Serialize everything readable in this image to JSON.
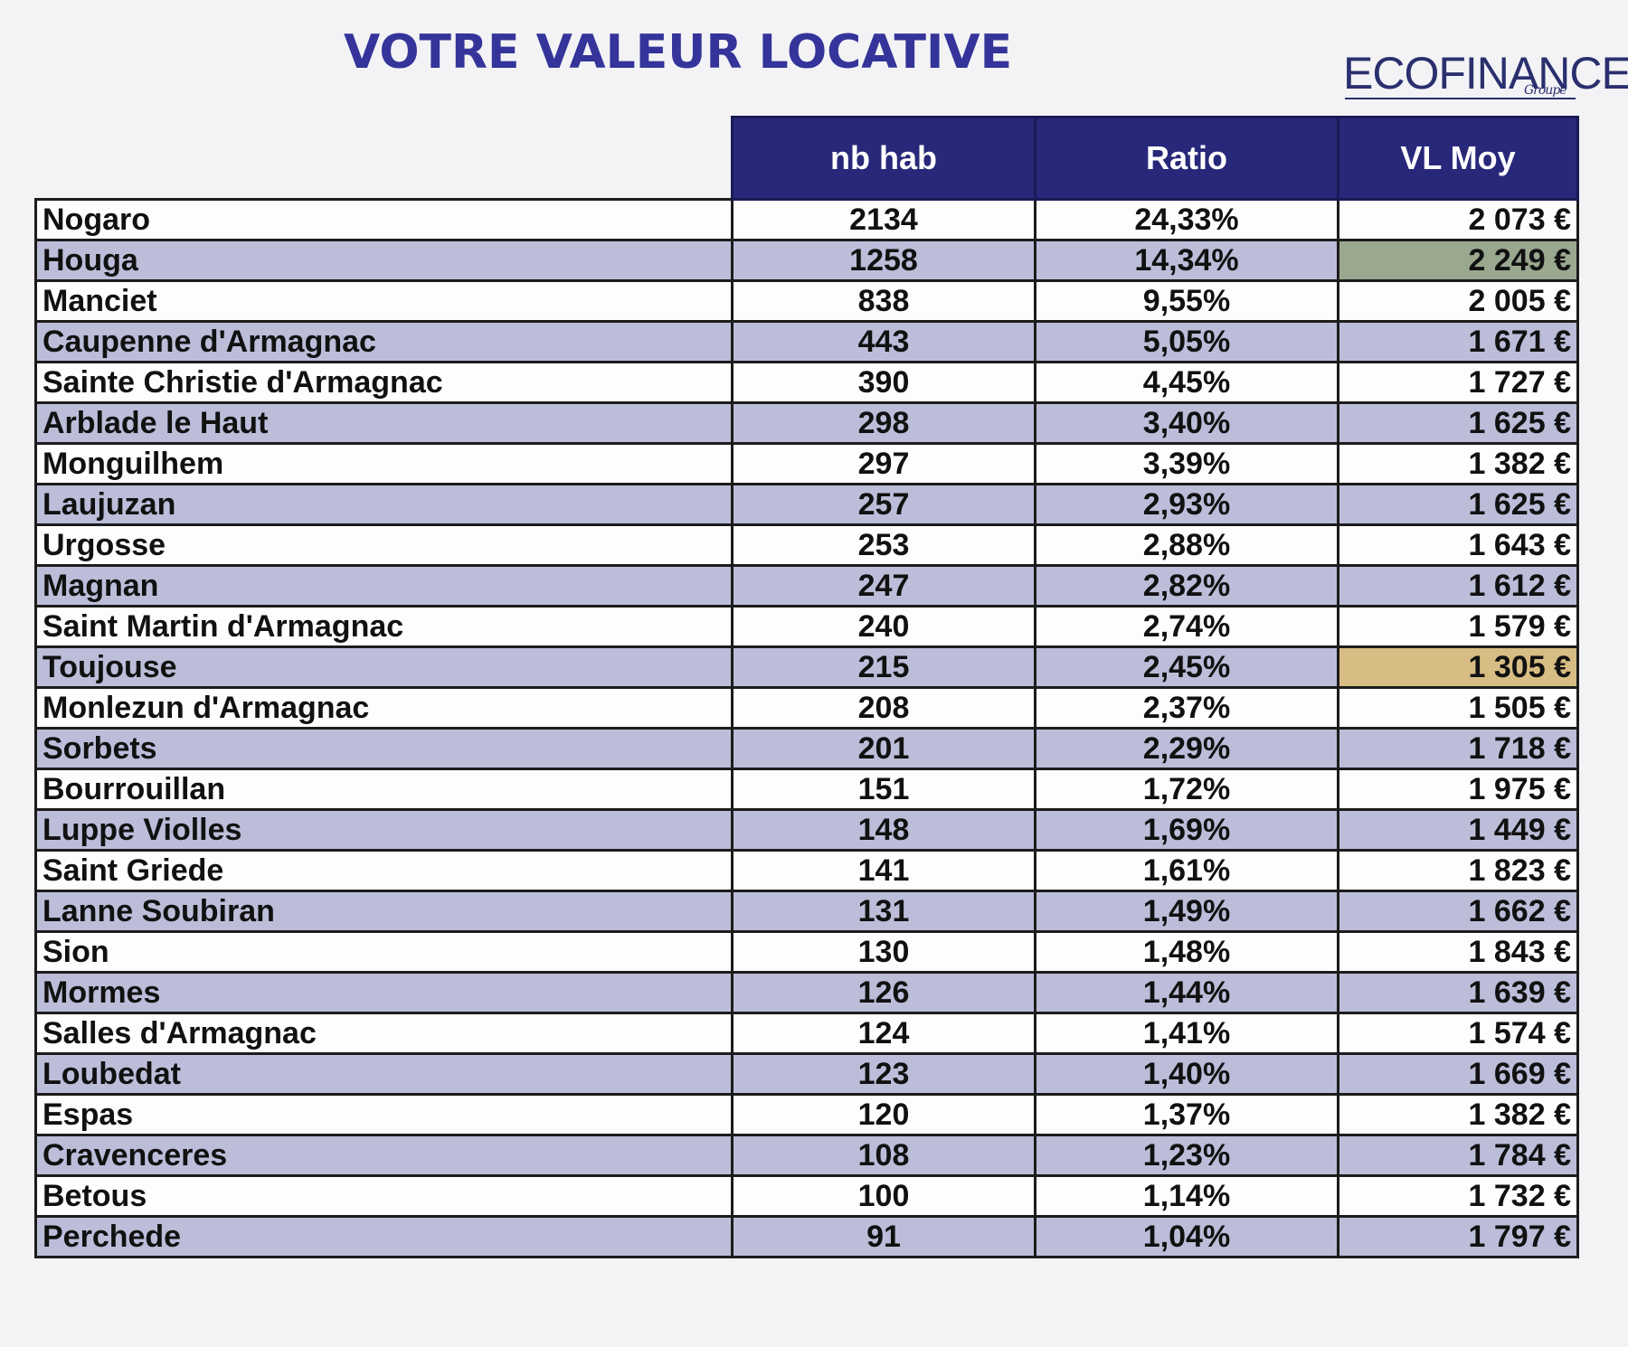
{
  "title": "VOTRE VALEUR LOCATIVE",
  "logo": {
    "text": "ECOFINANCE",
    "sub": "Groupe"
  },
  "table": {
    "headers": [
      "",
      "nb hab",
      "Ratio",
      "VL Moy"
    ],
    "rows": [
      {
        "commune": "Nogaro",
        "nb_hab": "2134",
        "ratio": "24,33%",
        "vl_moy": "2 073 €"
      },
      {
        "commune": "Houga",
        "nb_hab": "1258",
        "ratio": "14,34%",
        "vl_moy": "2 249 €",
        "highlight": "#9aa890"
      },
      {
        "commune": "Manciet",
        "nb_hab": "838",
        "ratio": "9,55%",
        "vl_moy": "2 005 €"
      },
      {
        "commune": "Caupenne d'Armagnac",
        "nb_hab": "443",
        "ratio": "5,05%",
        "vl_moy": "1 671 €"
      },
      {
        "commune": "Sainte Christie d'Armagnac",
        "nb_hab": "390",
        "ratio": "4,45%",
        "vl_moy": "1 727 €"
      },
      {
        "commune": "Arblade le Haut",
        "nb_hab": "298",
        "ratio": "3,40%",
        "vl_moy": "1 625 €"
      },
      {
        "commune": "Monguilhem",
        "nb_hab": "297",
        "ratio": "3,39%",
        "vl_moy": "1 382 €"
      },
      {
        "commune": "Laujuzan",
        "nb_hab": "257",
        "ratio": "2,93%",
        "vl_moy": "1 625 €"
      },
      {
        "commune": "Urgosse",
        "nb_hab": "253",
        "ratio": "2,88%",
        "vl_moy": "1 643 €"
      },
      {
        "commune": "Magnan",
        "nb_hab": "247",
        "ratio": "2,82%",
        "vl_moy": "1 612 €"
      },
      {
        "commune": "Saint Martin d'Armagnac",
        "nb_hab": "240",
        "ratio": "2,74%",
        "vl_moy": "1 579 €"
      },
      {
        "commune": "Toujouse",
        "nb_hab": "215",
        "ratio": "2,45%",
        "vl_moy": "1 305 €",
        "highlight": "#d7bd83"
      },
      {
        "commune": "Monlezun d'Armagnac",
        "nb_hab": "208",
        "ratio": "2,37%",
        "vl_moy": "1 505 €"
      },
      {
        "commune": "Sorbets",
        "nb_hab": "201",
        "ratio": "2,29%",
        "vl_moy": "1 718 €"
      },
      {
        "commune": "Bourrouillan",
        "nb_hab": "151",
        "ratio": "1,72%",
        "vl_moy": "1 975 €"
      },
      {
        "commune": "Luppe Violles",
        "nb_hab": "148",
        "ratio": "1,69%",
        "vl_moy": "1 449 €"
      },
      {
        "commune": "Saint Griede",
        "nb_hab": "141",
        "ratio": "1,61%",
        "vl_moy": "1 823 €"
      },
      {
        "commune": "Lanne Soubiran",
        "nb_hab": "131",
        "ratio": "1,49%",
        "vl_moy": "1 662 €"
      },
      {
        "commune": "Sion",
        "nb_hab": "130",
        "ratio": "1,48%",
        "vl_moy": "1 843 €"
      },
      {
        "commune": "Mormes",
        "nb_hab": "126",
        "ratio": "1,44%",
        "vl_moy": "1 639 €"
      },
      {
        "commune": "Salles d'Armagnac",
        "nb_hab": "124",
        "ratio": "1,41%",
        "vl_moy": "1 574 €"
      },
      {
        "commune": "Loubedat",
        "nb_hab": "123",
        "ratio": "1,40%",
        "vl_moy": "1 669 €"
      },
      {
        "commune": "Espas",
        "nb_hab": "120",
        "ratio": "1,37%",
        "vl_moy": "1 382 €"
      },
      {
        "commune": "Cravenceres",
        "nb_hab": "108",
        "ratio": "1,23%",
        "vl_moy": "1 784 €"
      },
      {
        "commune": "Betous",
        "nb_hab": "100",
        "ratio": "1,14%",
        "vl_moy": "1 732 €"
      },
      {
        "commune": "Perchede",
        "nb_hab": "91",
        "ratio": "1,04%",
        "vl_moy": "1 797 €"
      }
    ]
  },
  "colors": {
    "title": "#34349a",
    "header_bg": "#28287a",
    "row_shade": "#bcbdd9"
  }
}
